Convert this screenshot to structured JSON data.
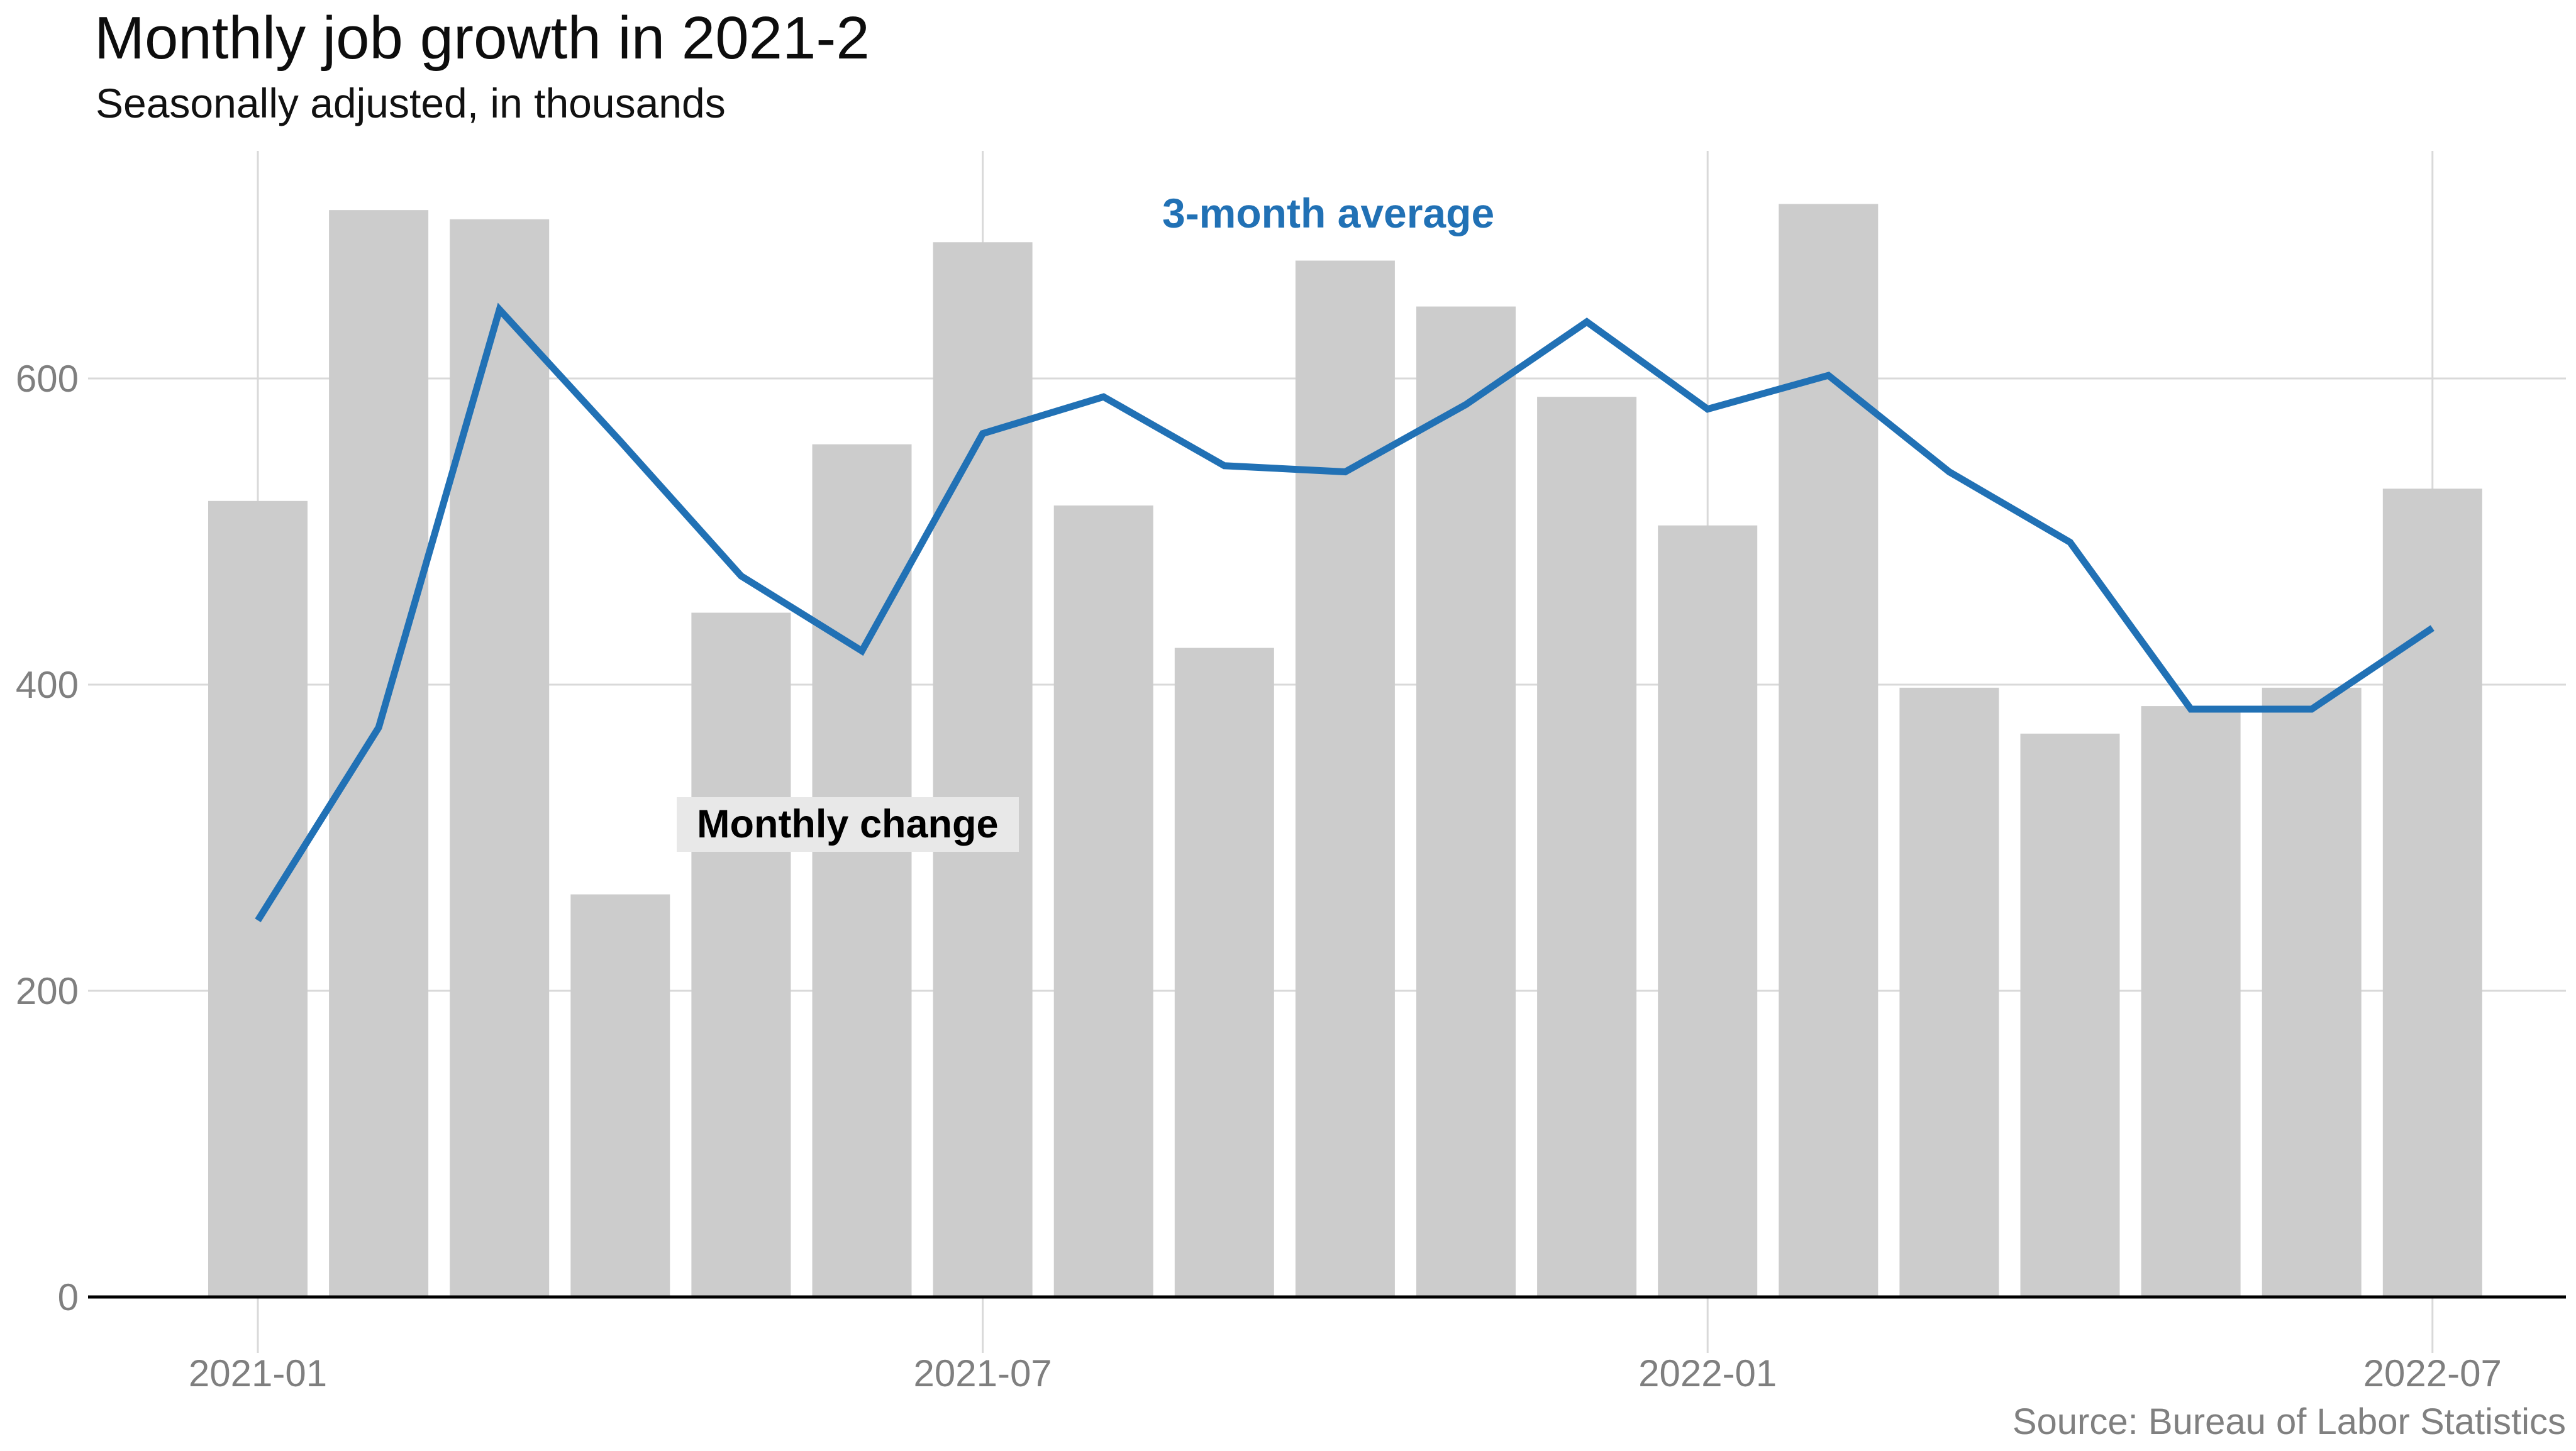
{
  "header": {
    "title": "Monthly job growth in 2021-2",
    "subtitle": "Seasonally adjusted, in thousands"
  },
  "annotations": {
    "line_label": "3-month average",
    "bar_label": "Monthly change"
  },
  "footer": {
    "source": "Source: Bureau of Labor Statistics"
  },
  "colors": {
    "bar": "#cccccc",
    "line": "#2171b5",
    "grid": "#d9d9d9",
    "axis": "#000000",
    "tick_text": "#7f7f7f",
    "label_bg": "#e8e8e8"
  },
  "chart_data": {
    "type": "bar",
    "title": "Monthly job growth in 2021-2",
    "subtitle": "Seasonally adjusted, in thousands",
    "source": "Source: Bureau of Labor Statistics",
    "categories": [
      "2021-01",
      "2021-02",
      "2021-03",
      "2021-04",
      "2021-05",
      "2021-06",
      "2021-07",
      "2021-08",
      "2021-09",
      "2021-10",
      "2021-11",
      "2021-12",
      "2022-01",
      "2022-02",
      "2022-03",
      "2022-04",
      "2022-05",
      "2022-06",
      "2022-07"
    ],
    "series": [
      {
        "name": "Monthly change",
        "type": "bar",
        "color": "#cccccc",
        "values": [
          520,
          710,
          704,
          263,
          447,
          557,
          689,
          517,
          424,
          677,
          647,
          588,
          504,
          714,
          398,
          368,
          386,
          398,
          528
        ]
      },
      {
        "name": "3-month average",
        "type": "line",
        "color": "#2171b5",
        "values": [
          246,
          372,
          645,
          559,
          471,
          422,
          564,
          588,
          543,
          539,
          583,
          637,
          580,
          602,
          539,
          493,
          384,
          384,
          437
        ]
      }
    ],
    "xlabel": "",
    "ylabel": "",
    "ylim": [
      0,
      748
    ],
    "yticks": [
      0,
      200,
      400,
      600
    ],
    "xticks": [
      {
        "label": "2021-01",
        "month_index": 0
      },
      {
        "label": "2021-07",
        "month_index": 6
      },
      {
        "label": "2022-01",
        "month_index": 12
      },
      {
        "label": "2022-07",
        "month_index": 18
      }
    ],
    "grid": true,
    "legend_position": "none (inline text annotations)"
  }
}
